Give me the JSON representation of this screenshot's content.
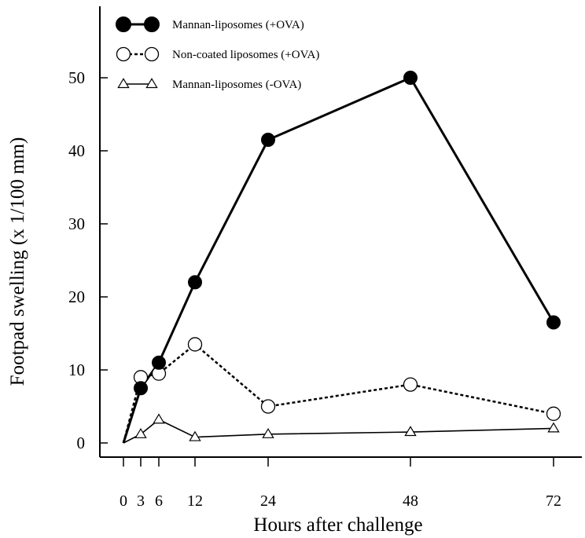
{
  "chart_data": {
    "type": "line",
    "title": "",
    "xlabel": "Hours after challenge",
    "ylabel": "Footpad swelling (x 1/100 mm)",
    "x": [
      0,
      3,
      6,
      12,
      24,
      48,
      72
    ],
    "xticks": [
      "0",
      "3",
      "6",
      "12",
      "24",
      "48",
      "72"
    ],
    "yticks": [
      "0",
      "10",
      "20",
      "30",
      "40",
      "50"
    ],
    "ylim": [
      -1.5,
      60
    ],
    "grid": false,
    "legend_position": "top-left",
    "series": [
      {
        "name": "Mannan-liposomes (+OVA)",
        "marker": "filled-circle",
        "line": "solid-thick",
        "points": [
          [
            0,
            0
          ],
          [
            3,
            7.5
          ],
          [
            6,
            11
          ],
          [
            12,
            22
          ],
          [
            24,
            41.5
          ],
          [
            48,
            50
          ],
          [
            72,
            16.5
          ]
        ]
      },
      {
        "name": "Non-coated liposomes (+OVA)",
        "marker": "open-circle",
        "line": "dotted",
        "points": [
          [
            0,
            0
          ],
          [
            3,
            9
          ],
          [
            6,
            9.5
          ],
          [
            12,
            13.5
          ],
          [
            24,
            5
          ],
          [
            48,
            8
          ],
          [
            72,
            4
          ]
        ]
      },
      {
        "name": "Mannan-liposomes (-OVA)",
        "marker": "open-triangle",
        "line": "solid-thin",
        "points": [
          [
            0,
            0
          ],
          [
            3,
            1.2
          ],
          [
            6,
            3.2
          ],
          [
            12,
            0.8
          ],
          [
            24,
            1.2
          ],
          [
            48,
            1.5
          ],
          [
            72,
            2
          ]
        ]
      }
    ]
  }
}
